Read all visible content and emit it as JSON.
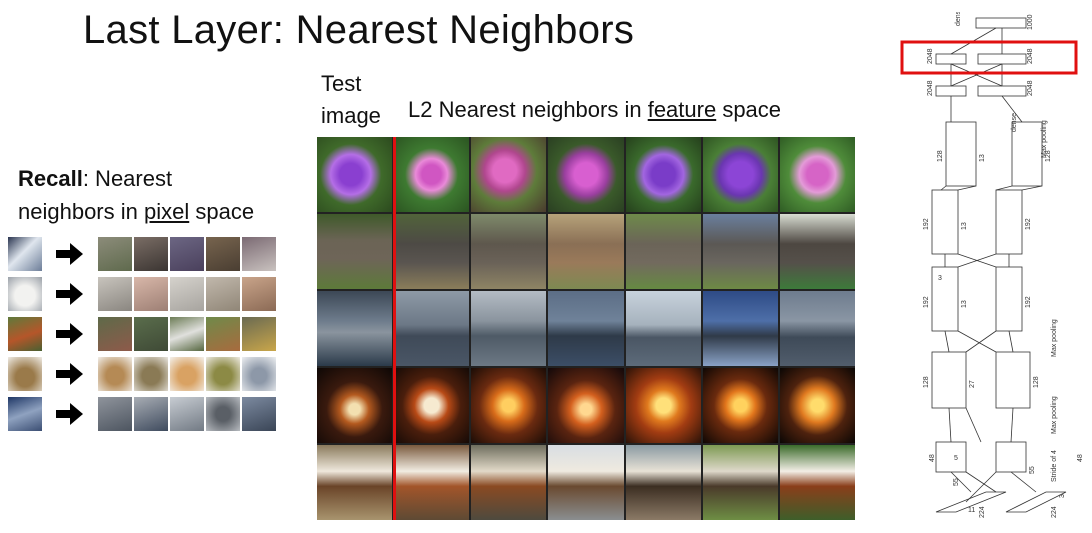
{
  "slide": {
    "title": "Last Layer: Nearest Neighbors"
  },
  "recall": {
    "bold": "Recall",
    "text_1": ": Nearest",
    "text_2": "neighbors in ",
    "underlined": "pixel",
    "text_3": " space"
  },
  "grid_header": {
    "test_line1": "Test",
    "test_line2": "image",
    "nn_prefix": "L2 Nearest neighbors in ",
    "nn_underlined": "feature",
    "nn_suffix": " space"
  },
  "grid_rows": [
    {
      "subject": "flower",
      "icon": "flower-icon"
    },
    {
      "subject": "elephant",
      "icon": "elephant-icon"
    },
    {
      "subject": "aircraft-carrier",
      "icon": "ship-icon"
    },
    {
      "subject": "jack-o-lantern",
      "icon": "pumpkin-icon"
    },
    {
      "subject": "dog",
      "icon": "dog-icon"
    }
  ],
  "network_labels": {
    "dense": "dense",
    "n2048": "2048",
    "n1000": "1000",
    "max_pooling": "Max pooling",
    "n128": "128",
    "n192": "192",
    "n48": "48",
    "n13": "13",
    "n27": "27",
    "n55": "55",
    "n224": "224",
    "n3": "3",
    "n5": "5",
    "n11": "11",
    "stride": "Stride of 4"
  },
  "colors": {
    "highlight": "#e01010",
    "separator": "#e01010"
  }
}
